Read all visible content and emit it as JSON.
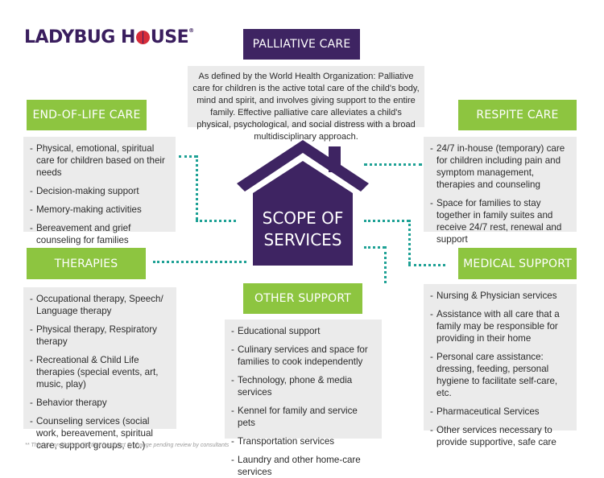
{
  "logo": {
    "part1": "LADYBUG H",
    "part2": "USE",
    "tm": "®"
  },
  "palliative": {
    "label": "Palliative Care",
    "definition": "As defined by the World Health Organization: Palliative care for children is the active total care of the child's body, mind and spirit, and involves giving support to the entire family. Effective palliative care alleviates a child's physical, psychological, and social distress with a broad multidisciplinary approach."
  },
  "center": {
    "line1": "SCOPE OF",
    "line2": "SERVICES"
  },
  "end_of_life": {
    "label": "End-of-Life Care",
    "items": [
      "Physical, emotional, spiritual care for children based on their needs",
      "Decision-making support",
      "Memory-making activities",
      "Bereavement and grief counseling for families"
    ]
  },
  "respite": {
    "label": "Respite Care",
    "items": [
      "24/7 in-house (temporary) care for children including pain and symptom management, therapies and counseling",
      "Space for families to stay together in family suites and receive 24/7 rest, renewal and support"
    ]
  },
  "therapies": {
    "label": "Therapies",
    "items": [
      "Occupational therapy, Speech/ Language therapy",
      "Physical therapy, Respiratory therapy",
      "Recreational & Child Life therapies (special events, art, music, play)",
      "Behavior therapy",
      "Counseling services (social work, bereavement, spiritual care, support groups, etc.)"
    ]
  },
  "other_support": {
    "label": "Other Support",
    "items": [
      "Educational support",
      "Culinary services and space for families to cook independently",
      "Technology, phone & media services",
      "Kennel for family and service pets",
      "Transportation services",
      "Laundry and other home-care services"
    ]
  },
  "medical": {
    "label": "Medical Support",
    "items": [
      "Nursing & Physician services",
      "Assistance with all care that a family may be responsible for providing in their home",
      "Personal care assistance: dressing, feeding, personal hygiene to facilitate self-care, etc.",
      "Pharmaceutical Services",
      "Other services necessary to provide supportive, safe care"
    ]
  },
  "footnote": "** This is a preliminary list that is subject to change pending review by consultants",
  "colors": {
    "purple": "#3e2462",
    "green": "#8dc540",
    "grey": "#ebebeb",
    "teal": "#1ea195",
    "red": "#d62c3a"
  }
}
